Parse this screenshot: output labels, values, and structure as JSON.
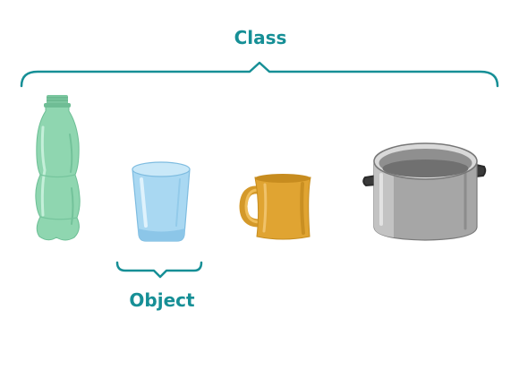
{
  "labels": {
    "class": "Class",
    "object": "Object"
  },
  "colors": {
    "accent": "#168f96",
    "bottle": "#8fd6b0",
    "glass": "#9ed1ef",
    "mug": "#e0a432",
    "pot": "#a6a6a6"
  },
  "icons": {
    "bottle": "plastic-bottle-icon",
    "glass": "drinking-glass-icon",
    "mug": "mug-icon",
    "pot": "cooking-pot-icon"
  }
}
